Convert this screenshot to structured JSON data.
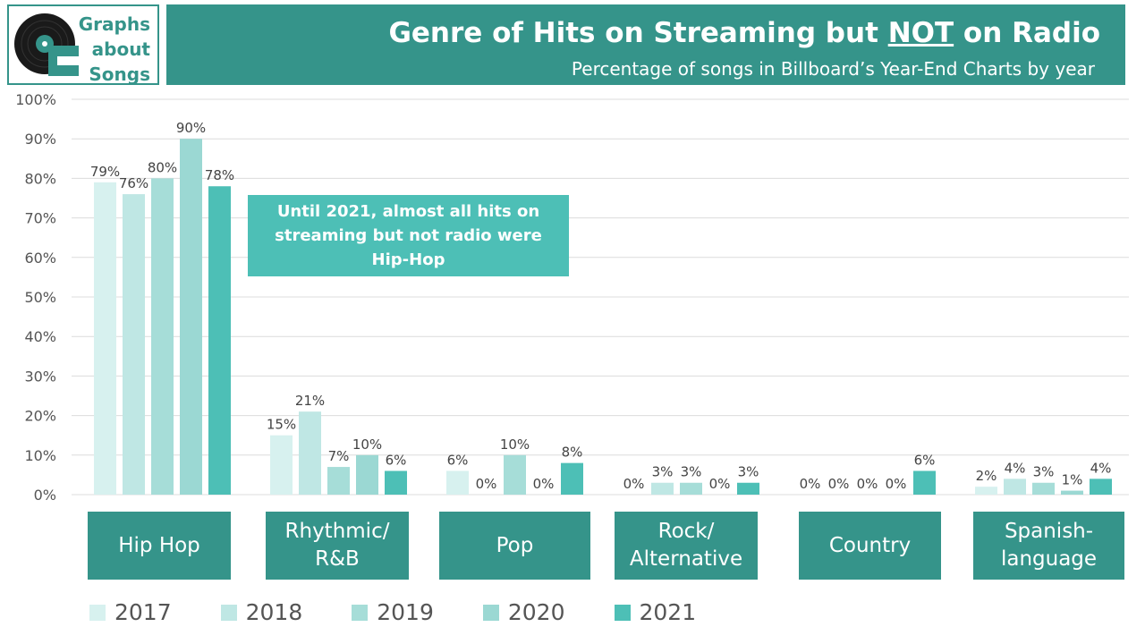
{
  "logo": {
    "line1": "Graphs",
    "line2": "about",
    "line3": "Songs"
  },
  "header": {
    "title_pre": "Genre of Hits on Streaming but ",
    "title_emph": "NOT",
    "title_post": " on Radio",
    "subtitle": "Percentage of songs in Billboard’s Year-End Charts by year"
  },
  "annotation": "Until 2021, almost all hits on streaming but not radio were Hip-Hop",
  "colors": {
    "brand": "#35948a",
    "annotation": "#4dbfb6"
  },
  "chart_data": {
    "type": "bar",
    "title": "Genre of Hits on Streaming but NOT on Radio",
    "subtitle": "Percentage of songs in Billboard’s Year-End Charts by year",
    "categories": [
      "Hip Hop",
      "Rhythmic/ R&B",
      "Pop",
      "Rock/ Alternative",
      "Country",
      "Spanish- language"
    ],
    "category_lines": [
      [
        "Hip Hop"
      ],
      [
        "Rhythmic/",
        "R&B"
      ],
      [
        "Pop"
      ],
      [
        "Rock/",
        "Alternative"
      ],
      [
        "Country"
      ],
      [
        "Spanish-",
        "language"
      ]
    ],
    "series": [
      {
        "name": "2017",
        "color": "#d7f1ef",
        "values": [
          79,
          15,
          6,
          0,
          0,
          2
        ]
      },
      {
        "name": "2018",
        "color": "#bfe7e4",
        "values": [
          76,
          21,
          0,
          3,
          0,
          4
        ]
      },
      {
        "name": "2019",
        "color": "#a6ddd8",
        "values": [
          80,
          7,
          10,
          3,
          0,
          3
        ]
      },
      {
        "name": "2020",
        "color": "#9bd8d3",
        "values": [
          90,
          10,
          0,
          0,
          0,
          1
        ]
      },
      {
        "name": "2021",
        "color": "#4dbfb6",
        "values": [
          78,
          6,
          8,
          3,
          6,
          4
        ]
      }
    ],
    "ylim": [
      0,
      100
    ],
    "yticks": [
      "0%",
      "10%",
      "20%",
      "30%",
      "40%",
      "50%",
      "60%",
      "70%",
      "80%",
      "90%",
      "100%"
    ],
    "xlabel": "",
    "ylabel": "",
    "grid": true,
    "legend": "bottom"
  }
}
